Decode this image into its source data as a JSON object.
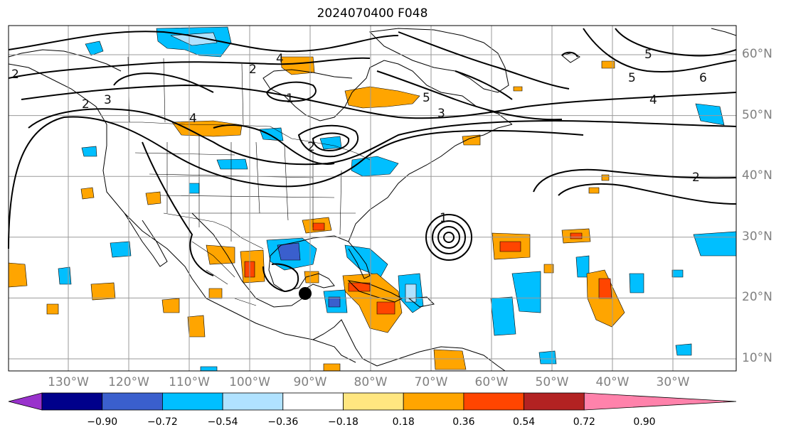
{
  "title": "2024070400 F048",
  "lat_labels": [
    {
      "text": "60°N",
      "lat": 60
    },
    {
      "text": "50°N",
      "lat": 50
    },
    {
      "text": "40°N",
      "lat": 40
    },
    {
      "text": "30°N",
      "lat": 30
    },
    {
      "text": "20°N",
      "lat": 20
    },
    {
      "text": "10°N",
      "lat": 10
    }
  ],
  "lon_labels": [
    {
      "text": "130°W",
      "lon": -130
    },
    {
      "text": "120°W",
      "lon": -120
    },
    {
      "text": "110°W",
      "lon": -110
    },
    {
      "text": "100°W",
      "lon": -100
    },
    {
      "text": "90°W",
      "lon": -90
    },
    {
      "text": "80°W",
      "lon": -80
    },
    {
      "text": "70°W",
      "lon": -70
    },
    {
      "text": "60°W",
      "lon": -60
    },
    {
      "text": "50°W",
      "lon": -50
    },
    {
      "text": "40°W",
      "lon": -40
    },
    {
      "text": "30°W",
      "lon": -30
    }
  ],
  "colorbar": {
    "labels": [
      "−0.90",
      "−0.72",
      "−0.54",
      "−0.36",
      "−0.18",
      "0.18",
      "0.36",
      "0.54",
      "0.72",
      "0.90"
    ],
    "colors": [
      "#9932cc",
      "#00008b",
      "#3a5fcd",
      "#00bfff",
      "#b0e2ff",
      "#ffffff",
      "#ffe680",
      "#ffa500",
      "#ff4500",
      "#b22222",
      "#ff82ab"
    ]
  },
  "contour_labels": [
    "1",
    "2",
    "2",
    "2",
    "2",
    "3",
    "3",
    "4",
    "4",
    "4",
    "5",
    "5",
    "5",
    "6",
    "2",
    "1"
  ],
  "marker": {
    "type": "storm-center-dot",
    "lat": 20.5,
    "lon": -90.8
  }
}
